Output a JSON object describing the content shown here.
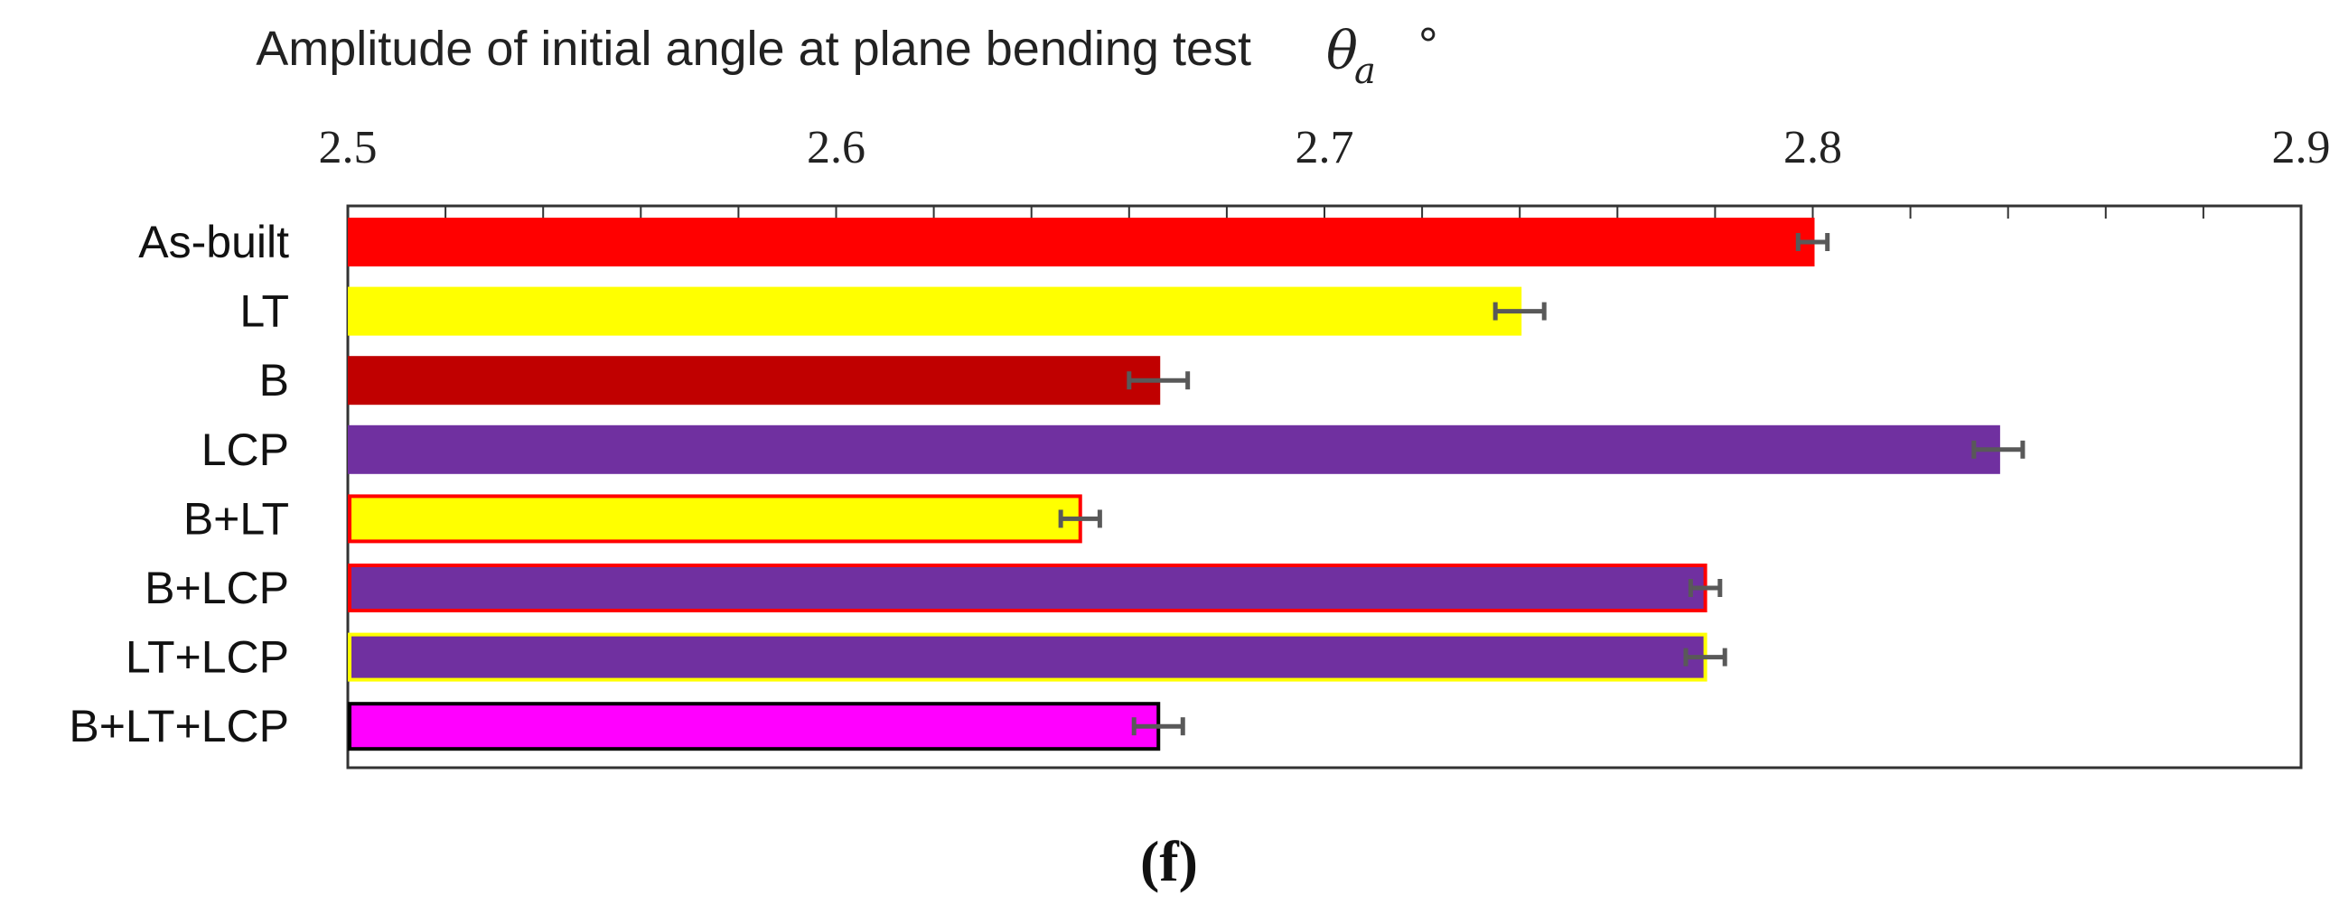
{
  "chart_data": {
    "type": "bar",
    "orientation": "horizontal",
    "title": "Amplitude of initial angle at plane bending test",
    "axis_symbol": "θ",
    "axis_symbol_subscript": "a",
    "unit": "°",
    "xlim": [
      2.5,
      2.9
    ],
    "x_ticks": [
      "2.5",
      "2.6",
      "2.7",
      "2.8",
      "2.9"
    ],
    "x_tick_values": [
      2.5,
      2.6,
      2.7,
      2.8,
      2.9
    ],
    "x_axis_position": "top",
    "grid": false,
    "categories": [
      "As-built",
      "LT",
      "B",
      "LCP",
      "B+LT",
      "B+LCP",
      "LT+LCP",
      "B+LT+LCP"
    ],
    "values": [
      2.8,
      2.74,
      2.666,
      2.838,
      2.65,
      2.778,
      2.778,
      2.666
    ],
    "errors": [
      0.003,
      0.005,
      0.006,
      0.005,
      0.004,
      0.003,
      0.004,
      0.005
    ],
    "fill_colors": [
      "#ff0000",
      "#ffff00",
      "#c00000",
      "#7030a0",
      "#ffff00",
      "#7030a0",
      "#7030a0",
      "#ff00ff"
    ],
    "edge_colors": [
      "#ff0000",
      "#ffff00",
      "#c00000",
      "#7030a0",
      "#ff0000",
      "#ff0000",
      "#ffff00",
      "#000000"
    ],
    "error_bar_color": "#595959",
    "panel_label": "(f)"
  }
}
